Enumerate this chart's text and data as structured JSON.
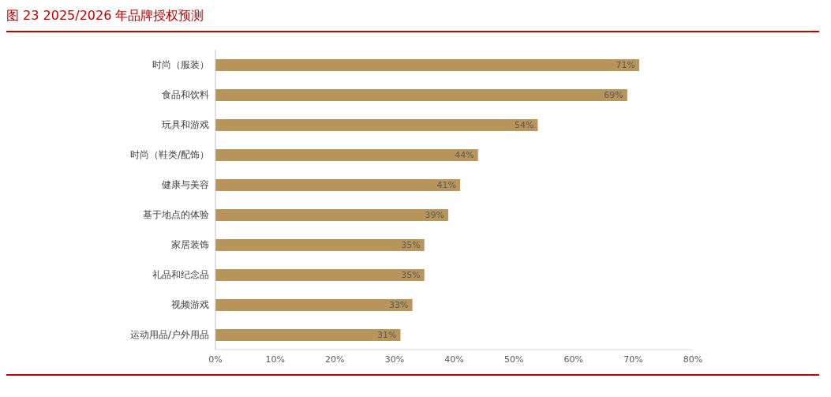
{
  "chart_data": {
    "type": "bar",
    "orientation": "horizontal",
    "title": "图 23   2025/2026 年品牌授权预测",
    "categories": [
      "时尚（服装）",
      "食品和饮料",
      "玩具和游戏",
      "时尚（鞋类/配饰）",
      "健康与美容",
      "基于地点的体验",
      "家居装饰",
      "礼品和纪念品",
      "视频游戏",
      "运动用品/户外用品"
    ],
    "values": [
      71,
      69,
      54,
      44,
      41,
      39,
      35,
      35,
      33,
      31
    ],
    "value_labels": [
      "71%",
      "69%",
      "54%",
      "44%",
      "41%",
      "39%",
      "35%",
      "35%",
      "33%",
      "31%"
    ],
    "color": "#b8955a",
    "xlim": [
      0,
      80
    ],
    "xticks": [
      {
        "value": 0,
        "label": "0%"
      },
      {
        "value": 10,
        "label": "10%"
      },
      {
        "value": 20,
        "label": "20%"
      },
      {
        "value": 30,
        "label": "30%"
      },
      {
        "value": 40,
        "label": "40%"
      },
      {
        "value": 50,
        "label": "50%"
      },
      {
        "value": 60,
        "label": "60%"
      },
      {
        "value": 70,
        "label": "70%"
      },
      {
        "value": 80,
        "label": "80%"
      }
    ],
    "grid": false,
    "legend": false
  }
}
